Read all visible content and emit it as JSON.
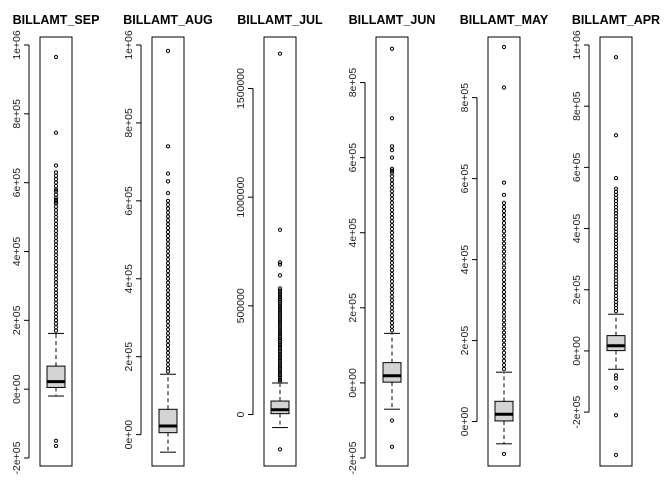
{
  "chart_data": [
    {
      "type": "boxplot",
      "title": "BILLAMT_SEP",
      "ylim": [
        -200000,
        1000000
      ],
      "ticks": [
        {
          "v": -200000,
          "label": "-2e+05"
        },
        {
          "v": 0,
          "label": "0e+00"
        },
        {
          "v": 200000,
          "label": "2e+05"
        },
        {
          "v": 400000,
          "label": "4e+05"
        },
        {
          "v": 600000,
          "label": "6e+05"
        },
        {
          "v": 800000,
          "label": "8e+05"
        },
        {
          "v": 1000000,
          "label": "1e+06"
        }
      ],
      "box": {
        "lower_whisker": -20000,
        "q1": 5000,
        "median": 22000,
        "q3": 67000,
        "upper_whisker": 162000
      },
      "outliers": [
        -165000,
        -150000,
        965000,
        745000,
        650000,
        630000,
        620000,
        610000,
        600000,
        590000,
        580000,
        575000,
        565000,
        555000,
        550000,
        545000,
        540000,
        530000,
        520000,
        510000,
        500000,
        490000,
        480000,
        470000,
        460000,
        450000,
        440000,
        430000,
        420000,
        410000,
        400000,
        390000,
        380000,
        370000,
        360000,
        350000,
        340000,
        330000,
        320000,
        310000,
        300000,
        290000,
        280000,
        270000,
        260000,
        250000,
        240000,
        230000,
        220000,
        210000,
        200000,
        190000,
        180000,
        170000
      ]
    },
    {
      "type": "boxplot",
      "title": "BILLAMT_AUG",
      "ylim": [
        -60000,
        1000000
      ],
      "ticks": [
        {
          "v": 0,
          "label": "0e+00"
        },
        {
          "v": 200000,
          "label": "2e+05"
        },
        {
          "v": 400000,
          "label": "4e+05"
        },
        {
          "v": 600000,
          "label": "6e+05"
        },
        {
          "v": 800000,
          "label": "8e+05"
        },
        {
          "v": 1000000,
          "label": "1e+06"
        }
      ],
      "box": {
        "lower_whisker": -45000,
        "q1": 5000,
        "median": 22000,
        "q3": 65000,
        "upper_whisker": 155000
      },
      "outliers": [
        985000,
        740000,
        670000,
        650000,
        620000,
        600000,
        590000,
        580000,
        570000,
        560000,
        550000,
        540000,
        530000,
        520000,
        510000,
        500000,
        490000,
        480000,
        470000,
        460000,
        450000,
        440000,
        430000,
        420000,
        410000,
        400000,
        390000,
        380000,
        370000,
        360000,
        350000,
        340000,
        330000,
        320000,
        310000,
        300000,
        290000,
        280000,
        270000,
        260000,
        250000,
        240000,
        230000,
        220000,
        210000,
        200000,
        190000,
        180000,
        170000,
        162000
      ]
    },
    {
      "type": "boxplot",
      "title": "BILLAMT_JUL",
      "ylim": [
        -200000,
        1700000
      ],
      "ticks": [
        {
          "v": 0,
          "label": "0"
        },
        {
          "v": 500000,
          "label": "500000"
        },
        {
          "v": 1000000,
          "label": "1000000"
        },
        {
          "v": 1500000,
          "label": "1500000"
        }
      ],
      "box": {
        "lower_whisker": -60000,
        "q1": 4000,
        "median": 22000,
        "q3": 62000,
        "upper_whisker": 145000
      },
      "outliers": [
        -160000,
        1660000,
        850000,
        700000,
        690000,
        640000,
        580000,
        570000,
        560000,
        550000,
        540000,
        530000,
        520000,
        510000,
        500000,
        490000,
        480000,
        470000,
        460000,
        450000,
        440000,
        430000,
        420000,
        410000,
        400000,
        390000,
        380000,
        370000,
        360000,
        350000,
        340000,
        330000,
        320000,
        310000,
        300000,
        290000,
        280000,
        270000,
        260000,
        250000,
        240000,
        230000,
        220000,
        210000,
        200000,
        190000,
        180000,
        170000,
        160000,
        152000
      ]
    },
    {
      "type": "boxplot",
      "title": "BILLAMT_JUN",
      "ylim": [
        -200000,
        900000
      ],
      "ticks": [
        {
          "v": -200000,
          "label": "-2e+05"
        },
        {
          "v": 0,
          "label": "0e+00"
        },
        {
          "v": 200000,
          "label": "2e+05"
        },
        {
          "v": 400000,
          "label": "4e+05"
        },
        {
          "v": 600000,
          "label": "6e+05"
        },
        {
          "v": 800000,
          "label": "8e+05"
        }
      ],
      "box": {
        "lower_whisker": -70000,
        "q1": 2000,
        "median": 19000,
        "q3": 54000,
        "upper_whisker": 132000
      },
      "outliers": [
        -170000,
        -100000,
        890000,
        705000,
        630000,
        620000,
        600000,
        570000,
        565000,
        560000,
        550000,
        540000,
        530000,
        520000,
        510000,
        500000,
        490000,
        480000,
        470000,
        460000,
        450000,
        440000,
        430000,
        420000,
        410000,
        400000,
        390000,
        380000,
        370000,
        360000,
        350000,
        340000,
        330000,
        320000,
        310000,
        300000,
        290000,
        280000,
        270000,
        260000,
        250000,
        240000,
        230000,
        220000,
        210000,
        200000,
        190000,
        180000,
        170000,
        160000,
        150000,
        140000
      ]
    },
    {
      "type": "boxplot",
      "title": "BILLAMT_MAY",
      "ylim": [
        -90000,
        930000
      ],
      "ticks": [
        {
          "v": 0,
          "label": "0e+00"
        },
        {
          "v": 200000,
          "label": "2e+05"
        },
        {
          "v": 400000,
          "label": "4e+05"
        },
        {
          "v": 600000,
          "label": "6e+05"
        },
        {
          "v": 800000,
          "label": "8e+05"
        }
      ],
      "box": {
        "lower_whisker": -55000,
        "q1": 1500,
        "median": 18000,
        "q3": 50000,
        "upper_whisker": 122000
      },
      "outliers": [
        -80000,
        925000,
        825000,
        590000,
        560000,
        540000,
        530000,
        520000,
        510000,
        500000,
        490000,
        480000,
        470000,
        460000,
        450000,
        440000,
        430000,
        420000,
        410000,
        400000,
        390000,
        380000,
        370000,
        360000,
        350000,
        340000,
        330000,
        320000,
        310000,
        300000,
        290000,
        280000,
        270000,
        260000,
        250000,
        240000,
        230000,
        220000,
        210000,
        200000,
        190000,
        180000,
        170000,
        160000,
        150000,
        140000,
        130000
      ]
    },
    {
      "type": "boxplot",
      "title": "BILLAMT_APR",
      "ylim": [
        -350000,
        1000000
      ],
      "ticks": [
        {
          "v": -200000,
          "label": "-2e+05"
        },
        {
          "v": 0,
          "label": "0e+00"
        },
        {
          "v": 200000,
          "label": "2e+05"
        },
        {
          "v": 400000,
          "label": "4e+05"
        },
        {
          "v": 600000,
          "label": "6e+05"
        },
        {
          "v": 800000,
          "label": "8e+05"
        },
        {
          "v": 1000000,
          "label": "1e+06"
        }
      ],
      "box": {
        "lower_whisker": -60000,
        "q1": 1000,
        "median": 17000,
        "q3": 50000,
        "upper_whisker": 120000
      },
      "outliers": [
        -340000,
        -210000,
        -120000,
        -90000,
        -80000,
        960000,
        705000,
        565000,
        530000,
        520000,
        510000,
        500000,
        490000,
        480000,
        470000,
        460000,
        450000,
        440000,
        430000,
        420000,
        410000,
        400000,
        390000,
        380000,
        370000,
        360000,
        350000,
        340000,
        330000,
        320000,
        310000,
        300000,
        290000,
        280000,
        270000,
        260000,
        250000,
        240000,
        230000,
        220000,
        210000,
        200000,
        190000,
        180000,
        170000,
        160000,
        150000,
        140000,
        130000
      ]
    }
  ]
}
